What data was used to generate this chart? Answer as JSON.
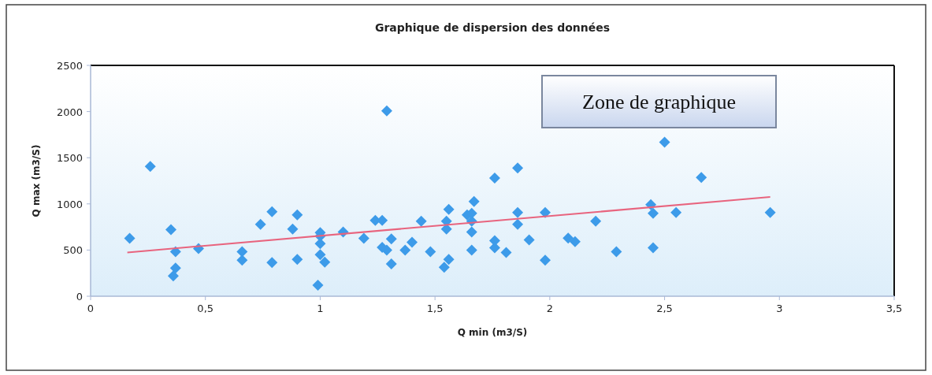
{
  "chart_data": {
    "type": "scatter",
    "title": "Graphique de dispersion des données",
    "xlabel": "Q min (m3/S)",
    "ylabel": "Q max (m3/S)",
    "annotations": [
      "Zone de graphique"
    ],
    "xlim": [
      0,
      3.5
    ],
    "ylim": [
      0,
      2500
    ],
    "xticks": [
      0,
      {
        "value": 0.5,
        "label": "0,5"
      },
      1,
      {
        "value": 1.5,
        "label": "1,5"
      },
      2,
      {
        "value": 2.5,
        "label": "2,5"
      },
      3,
      {
        "value": 3.5,
        "label": "3,5"
      }
    ],
    "yticks": [
      0,
      500,
      1000,
      1500,
      2000,
      2500
    ],
    "grid": false,
    "marker": "diamond",
    "series": [
      {
        "color": "#3d9be9",
        "x": [
          0.17,
          0.26,
          0.35,
          0.37,
          0.36,
          0.37,
          0.47,
          0.66,
          0.66,
          0.74,
          0.79,
          0.79,
          0.88,
          0.9,
          0.9,
          0.99,
          1.02,
          1.0,
          1.0,
          1.0,
          1.0,
          1.1,
          1.19,
          1.24,
          1.27,
          1.29,
          1.31,
          1.29,
          1.31,
          1.27,
          1.37,
          1.4,
          1.44,
          1.48,
          1.54,
          1.56,
          1.55,
          1.55,
          1.56,
          1.66,
          1.66,
          1.66,
          1.64,
          1.66,
          1.67,
          1.76,
          1.76,
          1.81,
          1.86,
          1.86,
          1.76,
          1.86,
          1.91,
          1.98,
          1.98,
          2.11,
          2.08,
          2.2,
          2.29,
          2.45,
          2.45,
          2.44,
          2.55,
          2.66,
          2.5,
          2.96
        ],
        "values": [
          627,
          1406,
          720,
          483,
          220,
          305,
          517,
          390,
          483,
          779,
          915,
          364,
          728,
          398,
          881,
          119,
          370,
          450,
          570,
          650,
          690,
          695,
          627,
          822,
          822,
          2007,
          350,
          500,
          620,
          530,
          500,
          584,
          813,
          483,
          313,
          398,
          728,
          813,
          940,
          500,
          695,
          813,
          881,
          898,
          1025,
          525,
          601,
          474,
          779,
          906,
          1279,
          1389,
          610,
          906,
          390,
          590,
          630,
          813,
          483,
          525,
          898,
          991,
          906,
          1287,
          1669,
          906
        ]
      },
      {
        "type": "line",
        "color": "#e8647e",
        "marker": "none",
        "x": [
          0.16,
          2.96
        ],
        "values": [
          474,
          1075
        ]
      }
    ]
  }
}
